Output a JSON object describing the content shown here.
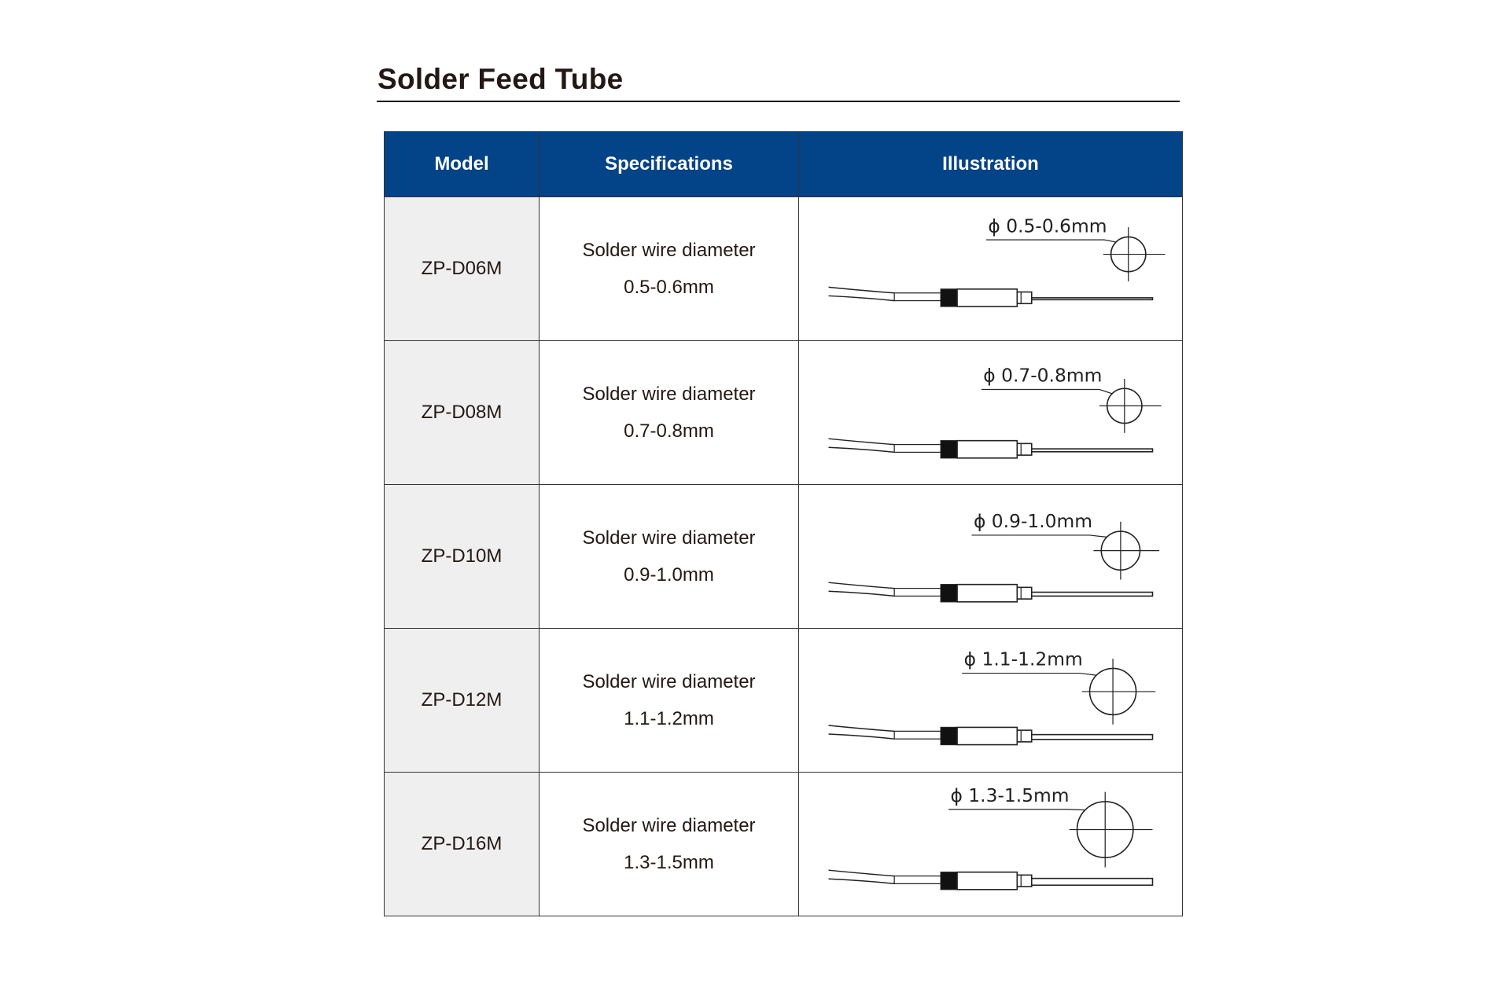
{
  "title": "Solder Feed Tube",
  "headers": {
    "model": "Model",
    "specifications": "Specifications",
    "illustration": "Illustration"
  },
  "rows": [
    {
      "model": "ZP-D06M",
      "spec_line1": "Solder wire diameter",
      "spec_line2": "0.5-0.6mm",
      "diameter_label": "ϕ 0.5-0.6mm"
    },
    {
      "model": "ZP-D08M",
      "spec_line1": "Solder wire diameter",
      "spec_line2": "0.7-0.8mm",
      "diameter_label": "ϕ 0.7-0.8mm"
    },
    {
      "model": "ZP-D10M",
      "spec_line1": "Solder wire diameter",
      "spec_line2": "0.9-1.0mm",
      "diameter_label": "ϕ 0.9-1.0mm"
    },
    {
      "model": "ZP-D12M",
      "spec_line1": "Solder wire diameter",
      "spec_line2": "1.1-1.2mm",
      "diameter_label": "ϕ 1.1-1.2mm"
    },
    {
      "model": "ZP-D16M",
      "spec_line1": "Solder wire diameter",
      "spec_line2": "1.3-1.5mm",
      "diameter_label": "ϕ 1.3-1.5mm"
    }
  ],
  "colors": {
    "header_bg": "#034387",
    "model_bg": "#efefef"
  }
}
